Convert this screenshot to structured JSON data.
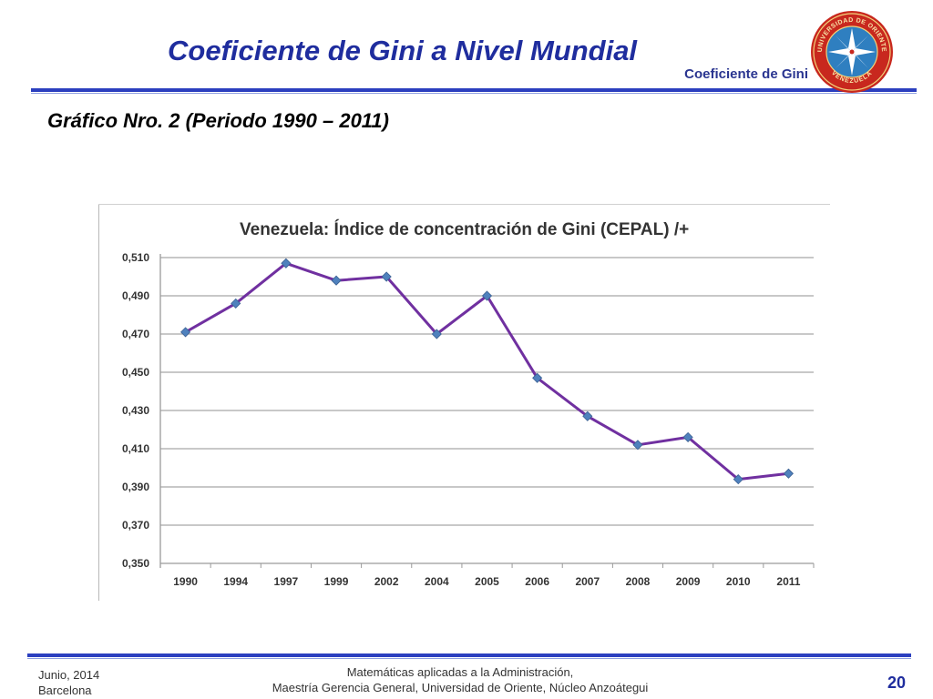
{
  "header": {
    "title": "Coeficiente de Gini a Nivel Mundial",
    "section": "Coeficiente de Gini",
    "logo": "universidad-de-oriente-seal",
    "logo_text_top": "UNIVERSIDAD DE ORIENTE",
    "logo_text_bottom": "VENEZUELA"
  },
  "subtitle": "Gráfico Nro. 2 (Periodo 1990 – 2011)",
  "chart_data": {
    "type": "line",
    "title": "Venezuela: Índice de concentración de Gini (CEPAL) /+",
    "categories": [
      "1990",
      "1994",
      "1997",
      "1999",
      "2002",
      "2004",
      "2005",
      "2006",
      "2007",
      "2008",
      "2009",
      "2010",
      "2011"
    ],
    "series": [
      {
        "values": [
          0.471,
          0.486,
          0.507,
          0.498,
          0.5,
          0.47,
          0.49,
          0.447,
          0.427,
          0.412,
          0.416,
          0.394,
          0.397
        ],
        "color": "#7030a0",
        "marker_color": "#4f81bd"
      }
    ],
    "yticks": [
      "0,350",
      "0,370",
      "0,390",
      "0,410",
      "0,430",
      "0,450",
      "0,470",
      "0,490",
      "0,510"
    ],
    "ylim": [
      0.35,
      0.51
    ],
    "grid": true,
    "legend": "none"
  },
  "footer": {
    "date": "Junio, 2014",
    "city": "Barcelona",
    "course": "Matemáticas aplicadas a la Administración,",
    "program": "Maestría Gerencia General, Universidad de Oriente, Núcleo Anzoátegui",
    "page": "20"
  }
}
